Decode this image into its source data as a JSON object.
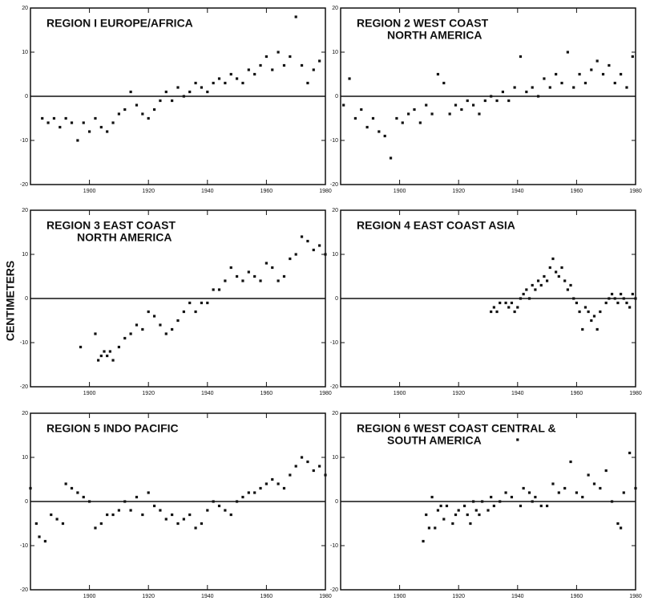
{
  "y_label": "CENTIMETERS",
  "chart_data": [
    {
      "type": "scatter",
      "title": [
        "REGION I  EUROPE/AFRICA"
      ],
      "color": "#111111",
      "x": [
        1884,
        1886,
        1888,
        1890,
        1892,
        1894,
        1896,
        1898,
        1900,
        1902,
        1904,
        1906,
        1908,
        1910,
        1912,
        1914,
        1916,
        1918,
        1920,
        1922,
        1924,
        1926,
        1928,
        1930,
        1932,
        1934,
        1936,
        1938,
        1940,
        1942,
        1944,
        1946,
        1948,
        1950,
        1952,
        1954,
        1956,
        1958,
        1960,
        1962,
        1964,
        1966,
        1968,
        1970,
        1972,
        1974,
        1976,
        1978
      ],
      "values": [
        -5,
        -6,
        -5,
        -7,
        -5,
        -6,
        -10,
        -6,
        -8,
        -5,
        -7,
        -8,
        -6,
        -4,
        -3,
        1,
        -2,
        -4,
        -5,
        -3,
        -1,
        1,
        -1,
        2,
        0,
        1,
        3,
        2,
        1,
        3,
        4,
        3,
        5,
        4,
        3,
        6,
        5,
        7,
        9,
        6,
        10,
        7,
        9,
        18,
        7,
        3,
        6,
        8
      ],
      "xlim": [
        1880,
        1980
      ],
      "xticks": [
        1900,
        1920,
        1940,
        1960,
        1980
      ],
      "ylim": [
        -20,
        20
      ],
      "yticks": [
        -20,
        -10,
        0,
        10,
        20
      ],
      "zero_line": true
    },
    {
      "type": "scatter",
      "title": [
        "REGION 2  WEST COAST",
        "NORTH AMERICA"
      ],
      "color": "#111111",
      "x": [
        1881,
        1883,
        1885,
        1887,
        1889,
        1891,
        1893,
        1895,
        1897,
        1899,
        1901,
        1903,
        1905,
        1907,
        1909,
        1911,
        1913,
        1915,
        1917,
        1919,
        1921,
        1923,
        1925,
        1927,
        1929,
        1931,
        1933,
        1935,
        1937,
        1939,
        1941,
        1943,
        1945,
        1947,
        1949,
        1951,
        1953,
        1955,
        1957,
        1959,
        1961,
        1963,
        1965,
        1967,
        1969,
        1971,
        1973,
        1975,
        1977,
        1979
      ],
      "values": [
        -2,
        4,
        -5,
        -3,
        -7,
        -5,
        -8,
        -9,
        -14,
        -5,
        -6,
        -4,
        -3,
        -6,
        -2,
        -4,
        5,
        3,
        -4,
        -2,
        -3,
        -1,
        -2,
        -4,
        -1,
        0,
        -1,
        1,
        -1,
        2,
        9,
        1,
        2,
        0,
        4,
        2,
        5,
        3,
        10,
        2,
        5,
        3,
        6,
        8,
        5,
        7,
        3,
        5,
        2,
        9
      ],
      "xlim": [
        1880,
        1980
      ],
      "xticks": [
        1900,
        1920,
        1940,
        1960,
        1980
      ],
      "ylim": [
        -20,
        20
      ],
      "yticks": [
        -20,
        -10,
        0,
        10,
        20
      ],
      "zero_line": true
    },
    {
      "type": "scatter",
      "title": [
        "REGION 3  EAST COAST",
        "NORTH AMERICA"
      ],
      "color": "#111111",
      "x": [
        1897,
        1902,
        1903,
        1904,
        1905,
        1906,
        1907,
        1908,
        1910,
        1912,
        1914,
        1916,
        1918,
        1920,
        1922,
        1924,
        1926,
        1928,
        1930,
        1932,
        1934,
        1936,
        1938,
        1940,
        1942,
        1944,
        1946,
        1948,
        1950,
        1952,
        1954,
        1956,
        1958,
        1960,
        1962,
        1964,
        1966,
        1968,
        1970,
        1972,
        1974,
        1976,
        1978,
        1980
      ],
      "values": [
        -11,
        -8,
        -14,
        -13,
        -12,
        -13,
        -12,
        -14,
        -11,
        -9,
        -8,
        -6,
        -7,
        -3,
        -4,
        -6,
        -8,
        -7,
        -5,
        -3,
        -1,
        -3,
        -1,
        -1,
        2,
        2,
        4,
        7,
        5,
        4,
        6,
        5,
        4,
        8,
        7,
        4,
        5,
        9,
        10,
        14,
        13,
        11,
        12,
        10
      ],
      "xlim": [
        1880,
        1980
      ],
      "xticks": [
        1900,
        1920,
        1940,
        1960,
        1980
      ],
      "ylim": [
        -20,
        20
      ],
      "yticks": [
        -20,
        -10,
        0,
        10,
        20
      ],
      "zero_line": true
    },
    {
      "type": "scatter",
      "title": [
        "REGION 4  EAST COAST ASIA"
      ],
      "color": "#111111",
      "x": [
        1931,
        1932,
        1933,
        1934,
        1936,
        1937,
        1938,
        1939,
        1940,
        1941,
        1942,
        1943,
        1944,
        1945,
        1946,
        1947,
        1948,
        1949,
        1950,
        1951,
        1952,
        1953,
        1954,
        1955,
        1956,
        1957,
        1958,
        1959,
        1960,
        1961,
        1962,
        1963,
        1964,
        1965,
        1966,
        1967,
        1968,
        1970,
        1971,
        1972,
        1973,
        1974,
        1975,
        1976,
        1977,
        1978,
        1979,
        1980
      ],
      "values": [
        -3,
        -2,
        -3,
        -1,
        -1,
        -2,
        -1,
        -3,
        -2,
        0,
        1,
        2,
        0,
        3,
        2,
        4,
        3,
        5,
        4,
        7,
        9,
        6,
        5,
        7,
        4,
        2,
        3,
        0,
        -1,
        -3,
        -7,
        -2,
        -3,
        -5,
        -4,
        -7,
        -3,
        -1,
        0,
        1,
        0,
        -1,
        1,
        0,
        -1,
        -2,
        1,
        0
      ],
      "xlim": [
        1880,
        1980
      ],
      "xticks": [
        1900,
        1920,
        1940,
        1960,
        1980
      ],
      "ylim": [
        -20,
        20
      ],
      "yticks": [
        -20,
        -10,
        0,
        10,
        20
      ],
      "zero_line": true
    },
    {
      "type": "scatter",
      "title": [
        "REGION 5  INDO PACIFIC"
      ],
      "color": "#111111",
      "x": [
        1880,
        1882,
        1883,
        1885,
        1887,
        1889,
        1891,
        1892,
        1894,
        1896,
        1898,
        1900,
        1902,
        1904,
        1906,
        1908,
        1910,
        1912,
        1914,
        1916,
        1918,
        1920,
        1922,
        1924,
        1926,
        1928,
        1930,
        1932,
        1934,
        1936,
        1938,
        1940,
        1942,
        1944,
        1946,
        1948,
        1950,
        1952,
        1954,
        1956,
        1958,
        1960,
        1962,
        1964,
        1966,
        1968,
        1970,
        1972,
        1974,
        1976,
        1978,
        1980
      ],
      "values": [
        3,
        -5,
        -8,
        -9,
        -3,
        -4,
        -5,
        4,
        3,
        2,
        1,
        0,
        -6,
        -5,
        -3,
        -3,
        -2,
        0,
        -2,
        1,
        -3,
        2,
        -1,
        -2,
        -4,
        -3,
        -5,
        -4,
        -3,
        -6,
        -5,
        -2,
        0,
        -1,
        -2,
        -3,
        0,
        1,
        2,
        2,
        3,
        4,
        5,
        4,
        3,
        6,
        8,
        10,
        9,
        7,
        8,
        6
      ],
      "xlim": [
        1880,
        1980
      ],
      "xticks": [
        1900,
        1920,
        1940,
        1960,
        1980
      ],
      "ylim": [
        -20,
        20
      ],
      "yticks": [
        -20,
        -10,
        0,
        10,
        20
      ],
      "zero_line": true
    },
    {
      "type": "scatter",
      "title": [
        "REGION 6  WEST COAST CENTRAL &",
        "SOUTH AMERICA"
      ],
      "color": "#111111",
      "x": [
        1908,
        1909,
        1910,
        1911,
        1912,
        1913,
        1914,
        1915,
        1916,
        1918,
        1919,
        1920,
        1922,
        1923,
        1924,
        1925,
        1926,
        1927,
        1928,
        1930,
        1931,
        1932,
        1934,
        1936,
        1938,
        1940,
        1941,
        1942,
        1944,
        1945,
        1946,
        1948,
        1950,
        1952,
        1954,
        1956,
        1958,
        1960,
        1962,
        1964,
        1966,
        1968,
        1970,
        1972,
        1974,
        1975,
        1976,
        1978,
        1980
      ],
      "values": [
        -9,
        -3,
        -6,
        1,
        -6,
        -2,
        -1,
        -4,
        -1,
        -5,
        -3,
        -2,
        -1,
        -3,
        -5,
        0,
        -2,
        -3,
        0,
        -2,
        1,
        -1,
        0,
        2,
        1,
        14,
        -1,
        3,
        2,
        0,
        1,
        -1,
        -1,
        4,
        2,
        3,
        9,
        2,
        1,
        6,
        4,
        3,
        7,
        0,
        -5,
        -6,
        2,
        11,
        3
      ],
      "xlim": [
        1880,
        1980
      ],
      "xticks": [
        1900,
        1920,
        1940,
        1960,
        1980
      ],
      "ylim": [
        -20,
        20
      ],
      "yticks": [
        -20,
        -10,
        0,
        10,
        20
      ],
      "zero_line": true
    }
  ]
}
